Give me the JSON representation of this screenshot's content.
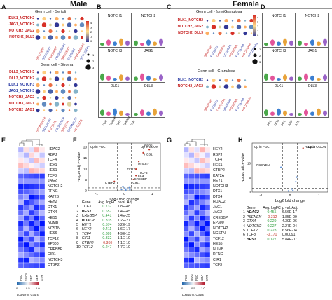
{
  "headers": {
    "male": "Male",
    "female": "Female"
  },
  "panel_letters": [
    "A",
    "B",
    "C",
    "D",
    "E",
    "F",
    "G",
    "H"
  ],
  "A": {
    "title1": "Germ cell - Sertoli",
    "rows1": [
      {
        "t": "IDLK1_NOTCH2",
        "c": "red"
      },
      {
        "t": "JAG1_NOTCH2",
        "c": "red"
      },
      {
        "t": "NOTCH2_JAG2",
        "c": "red"
      },
      {
        "t": "NOTCH2_DLL3",
        "c": "red"
      }
    ],
    "cols1": [
      "SGC|SERT",
      "SSC|SERT",
      "PGC|SERT",
      "TGCEC|SERT",
      "SPC|SERT",
      "STI|SERT",
      "SPERM|SERT",
      "SSTC|SERT"
    ],
    "title2": "Germ cell - Stroma",
    "rows2": [
      {
        "t": "DLL3_NOTCH3",
        "c": "red"
      },
      {
        "t": "DLL3_NOTCH2",
        "c": "red"
      },
      {
        "t": "IDLK1_NOTCH3",
        "c": "blue"
      },
      {
        "t": "JAG1_NOTCH3",
        "c": "blue"
      },
      {
        "t": "NOTCH2_JAG2",
        "c": "red"
      },
      {
        "t": "NOTCH3_JAG1",
        "c": "red"
      },
      {
        "t": "NOTCH2_JAG1",
        "c": "red"
      }
    ],
    "cols2": [
      "SGONS|STR",
      "SSGC|STR",
      "PGC|STR",
      "TGCEC|STR",
      "SPC|STR",
      "SPERM|STR",
      "SSTC|STR"
    ],
    "legend": [
      "4",
      "3",
      "2",
      "1",
      "0"
    ],
    "size_legend": [
      "1",
      "2",
      "3"
    ]
  },
  "B": {
    "boxes": [
      "NOTCH1",
      "NOTCH2",
      "NOTCH3",
      "JAG1",
      "DLK1",
      "DLL3"
    ],
    "xticks": [
      "PGC",
      "SGONS",
      "SPC",
      "SPERM",
      "STR"
    ]
  },
  "C": {
    "title1": "Germ cell - (pre)Granulosa",
    "rows1": [
      {
        "t": "DLK1_NOTCH2",
        "c": "red"
      },
      {
        "t": "NOTCH2_JAG2",
        "c": "red"
      },
      {
        "t": "NOTCH2_DLL3",
        "c": "red"
      }
    ],
    "cols1": [
      "GRA|PGC",
      "PGC|GRA",
      "GRA|OOG",
      "OOG|GRA",
      "PGCi|GRA",
      "PGCii|GRA",
      "PGCiii|GRA",
      "PGCOVRA1"
    ],
    "title2": "Germ cell - Granulosa",
    "rows2": [
      {
        "t": "DLK1_NOTCH2",
        "c": "blue"
      },
      {
        "t": "NOTCH2_JAG2",
        "c": "red"
      }
    ],
    "cols2": [
      "GRA|PGC",
      "PGC|GRA",
      "OOG|GRA",
      "GRA|OOG",
      "PGCi|GRA",
      "PGCii|GRA",
      "PGCOVRA1"
    ],
    "legend": [
      "4",
      "3",
      "2",
      "1",
      "0"
    ],
    "size_legend": [
      "1",
      "2",
      "3"
    ]
  },
  "D": {
    "boxes": [
      "NOTCH1",
      "NOTCH2",
      "NOTCH3",
      "JAG1",
      "DLK1",
      "DLL3"
    ],
    "xticks": [
      "PGC",
      "OOG",
      "PGC",
      "GRA",
      "STR"
    ]
  },
  "E": {
    "genes": [
      "HDAC2",
      "RBPJ",
      "TCF4",
      "HEY1",
      "HES1",
      "TCF3",
      "JAG2",
      "NOTCH2",
      "RFNG",
      "KAT2B",
      "HEY2",
      "DTX1",
      "DTX4",
      "HES5",
      "NUMB",
      "NCSTN",
      "HES6",
      "TCF12",
      "EP300",
      "CREBBP",
      "CIR1",
      "NOTCH3",
      "CTBP2"
    ],
    "cols": [
      "PGC",
      "SGON",
      "SPC",
      "SER",
      "STR"
    ],
    "legend_ticks": [
      "0",
      "0.5",
      "1.0"
    ],
    "legend_label": "LogNorm. Count"
  },
  "F": {
    "left_label": "Up in PGC",
    "right_label": "Up in SGON",
    "xlabel": "Log2 fold change",
    "ylabel": "-Log10 adj. P-value",
    "xticks": [
      "-1",
      "0",
      "1"
    ],
    "yticks": [
      "0",
      "5",
      "10",
      "15",
      "20"
    ],
    "annotations": [
      "RBPJ",
      "HES1",
      "HDAC2",
      "HEY2",
      "TCF3",
      "TCF4",
      "CREBBP",
      "CIR1",
      "CTBP2"
    ],
    "table": {
      "headers": [
        "Gene",
        "Avg. logFC",
        "p val. Adj."
      ],
      "rows": [
        {
          "n": "1",
          "g": "TCF3",
          "fc": "0.737",
          "p": "1.8E-48",
          "b": false
        },
        {
          "n": "2",
          "g": "HES1",
          "fc": "0.657",
          "p": "1.4E-45",
          "b": true
        },
        {
          "n": "3",
          "g": "CREBBP",
          "fc": "0.441",
          "p": "1.4E-25",
          "b": false
        },
        {
          "n": "4",
          "g": "HDAC2",
          "fc": "0.335",
          "p": "1.2E-27",
          "b": true
        },
        {
          "n": "5",
          "g": "HEY1",
          "fc": "0.574",
          "p": "6.2E-19",
          "b": false
        },
        {
          "n": "6",
          "g": "HEY2",
          "fc": "0.411",
          "p": "1.6E-17",
          "b": false
        },
        {
          "n": "7",
          "g": "TCF4",
          "fc": "0.309",
          "p": "4.9E-13",
          "b": false
        },
        {
          "n": "8",
          "g": "CIR1",
          "fc": "0.332",
          "p": "1.1E-10",
          "b": false
        },
        {
          "n": "9",
          "g": "CTBP2",
          "fc": "-0.360",
          "p": "4.1E-10",
          "b": false
        },
        {
          "n": "10",
          "g": "TCF12",
          "fc": "0.247",
          "p": "4.7E-10",
          "b": false
        }
      ]
    }
  },
  "G": {
    "genes": [
      "HEY2",
      "RBPJ",
      "TCF4",
      "HES1",
      "CTBP2",
      "KAT2A",
      "HEY1",
      "NOTCH3",
      "DTX1",
      "DTX4",
      "HDAC2",
      "JAG1",
      "JAG2",
      "CREBBP",
      "EP300",
      "NOTCH2",
      "NCSTN",
      "TCF12",
      "HES5",
      "NUMB",
      "RFNG",
      "CIR1",
      "TCF3"
    ],
    "cols": [
      "PGC",
      "OOG",
      "PGC",
      "GRA",
      "STR"
    ],
    "legend_ticks": [
      "0",
      "0.5",
      "1.0"
    ],
    "legend_label": "LogNorm. Count"
  },
  "H": {
    "left_label": "Up in PGC",
    "right_label": "Up in OGON",
    "xlabel": "Log2 fold change",
    "ylabel": "-Log10 adj. P-value",
    "xticks": [
      "-1",
      "0",
      "1"
    ],
    "yticks": [
      "0",
      "5",
      "10"
    ],
    "annotations": [
      "HDAC2",
      "PSENEN"
    ],
    "table": {
      "headers": [
        "Gene",
        "Avg. logFC",
        "p val. Adj."
      ],
      "rows": [
        {
          "n": "1",
          "g": "HDAC2",
          "fc": "0.455",
          "p": "6.56E-17",
          "b": true
        },
        {
          "n": "2",
          "g": "PSENEN",
          "fc": "-0.312",
          "p": "1.85E-09",
          "b": false
        },
        {
          "n": "3",
          "g": "DTX4",
          "fc": "0.229",
          "p": "4.39E-06",
          "b": false
        },
        {
          "n": "4",
          "g": "NOTCH2",
          "fc": "0.227",
          "p": "2.27E-04",
          "b": false
        },
        {
          "n": "5",
          "g": "TCF12",
          "fc": "0.228",
          "p": "6.56E-04",
          "b": false
        },
        {
          "n": "6",
          "g": "TCF3",
          "fc": "-0.171",
          "p": "0.00091",
          "b": false
        },
        {
          "n": "7",
          "g": "HES1",
          "fc": "0.127",
          "p": "5.84E-07",
          "b": true
        }
      ]
    }
  }
}
